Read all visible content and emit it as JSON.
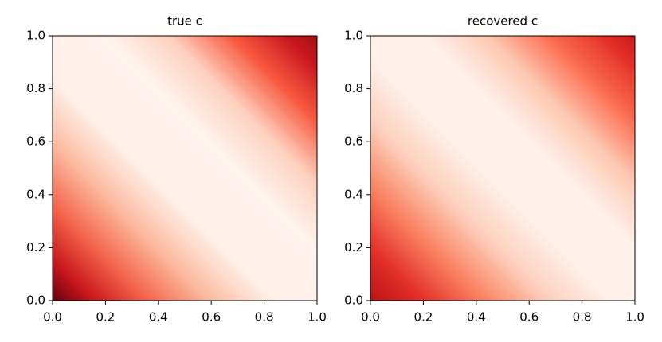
{
  "chart_data": [
    {
      "type": "heatmap",
      "title": "true c",
      "xlim": [
        0,
        1
      ],
      "ylim": [
        0,
        1
      ],
      "xticks": [
        {
          "value": 0,
          "label": "0.0"
        },
        0.2,
        0.4,
        0.6,
        0.8,
        {
          "value": 1,
          "label": "1.0"
        }
      ],
      "yticks": [
        {
          "value": 0,
          "label": "0.0"
        },
        0.2,
        0.4,
        0.6,
        0.8,
        {
          "value": 1,
          "label": "1.0"
        }
      ]
    },
    {
      "type": "heatmap",
      "title": "recovered c",
      "xlim": [
        0,
        1
      ],
      "ylim": [
        0,
        1
      ],
      "xticks": [
        {
          "value": 0,
          "label": "0.0"
        },
        0.2,
        0.4,
        0.6,
        0.8,
        {
          "value": 1,
          "label": "1.0"
        }
      ],
      "yticks": [
        {
          "value": 0,
          "label": "0.0"
        },
        0.2,
        0.4,
        0.6,
        0.8,
        {
          "value": 1,
          "label": "1.0"
        }
      ]
    }
  ]
}
